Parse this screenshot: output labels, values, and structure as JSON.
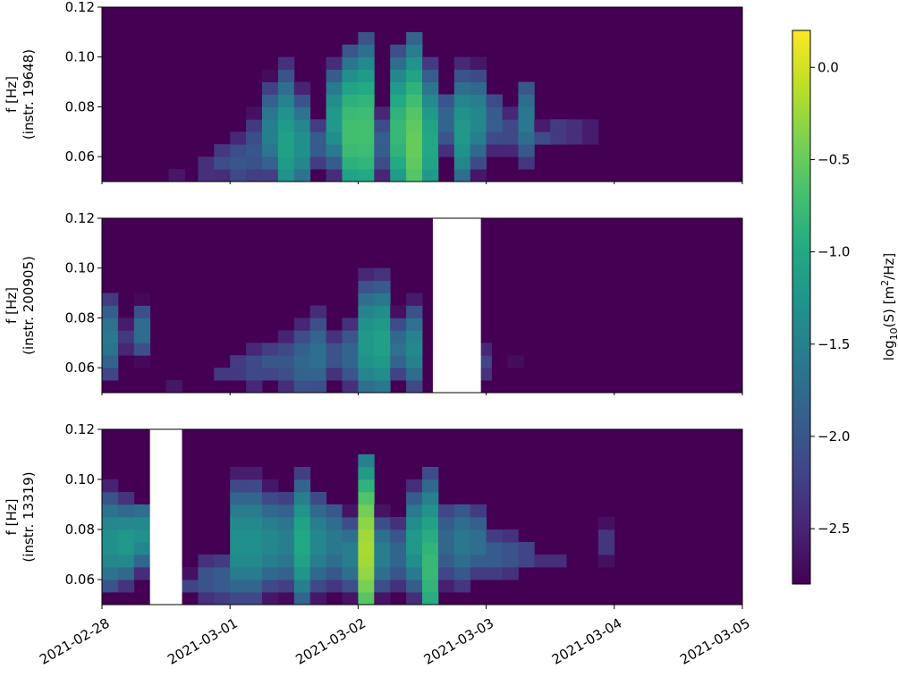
{
  "chart_data": {
    "type": "heatmap",
    "title": "",
    "xlabel": "",
    "x_ticks": [
      "2021-02-28",
      "2021-03-01",
      "2021-03-02",
      "2021-03-03",
      "2021-03-04",
      "2021-03-05"
    ],
    "xlim": [
      "2021-02-28",
      "2021-03-05"
    ],
    "ylim": [
      0.05,
      0.12
    ],
    "y_ticks": [
      "0.06",
      "0.08",
      "0.10",
      "0.12"
    ],
    "colormap": "viridis",
    "colorbar": {
      "label_prefix": "log",
      "label_sub": "10",
      "label_mid": "(S) [m",
      "label_sup": "2",
      "label_suffix": "/Hz]",
      "range": [
        -2.8,
        0.2
      ],
      "ticks": [
        "0.0",
        "−0.5",
        "−1.0",
        "−1.5",
        "−2.0",
        "−2.5"
      ],
      "tick_values": [
        0.0,
        -0.5,
        -1.0,
        -1.5,
        -2.0,
        -2.5
      ]
    },
    "freq_bins": [
      0.05,
      0.055,
      0.06,
      0.065,
      0.07,
      0.075,
      0.08,
      0.085,
      0.09,
      0.095,
      0.1,
      0.105,
      0.11,
      0.115,
      0.12
    ],
    "panels": [
      {
        "ylabel_line1": "f [Hz]",
        "ylabel_line2": "(instr. 19648)",
        "no_data_intervals": [],
        "bursts": [
          {
            "time": "2021-02-28T14:00",
            "width_h": 3,
            "fmin": 0.05,
            "fmax": 0.055,
            "fpeak": 0.052,
            "peak": -2.6
          },
          {
            "time": "2021-02-28T16:30",
            "width_h": 3,
            "fmin": 0.05,
            "fmax": 0.06,
            "fpeak": 0.055,
            "peak": -2.5
          },
          {
            "time": "2021-02-28T19:30",
            "width_h": 3,
            "fmin": 0.05,
            "fmax": 0.065,
            "fpeak": 0.055,
            "peak": -2.3
          },
          {
            "time": "2021-02-28T22:30",
            "width_h": 3,
            "fmin": 0.05,
            "fmax": 0.07,
            "fpeak": 0.058,
            "peak": -2.1
          },
          {
            "time": "2021-03-01T01:30",
            "width_h": 3,
            "fmin": 0.05,
            "fmax": 0.075,
            "fpeak": 0.058,
            "peak": -2.0
          },
          {
            "time": "2021-03-01T04:30",
            "width_h": 3,
            "fmin": 0.05,
            "fmax": 0.085,
            "fpeak": 0.062,
            "peak": -2.0
          },
          {
            "time": "2021-03-01T07:30",
            "width_h": 3,
            "fmin": 0.05,
            "fmax": 0.095,
            "fpeak": 0.07,
            "peak": -1.5
          },
          {
            "time": "2021-03-01T10:30",
            "width_h": 3,
            "fmin": 0.05,
            "fmax": 0.1,
            "fpeak": 0.065,
            "peak": -1.1
          },
          {
            "time": "2021-03-01T13:30",
            "width_h": 3,
            "fmin": 0.05,
            "fmax": 0.09,
            "fpeak": 0.065,
            "peak": -1.3
          },
          {
            "time": "2021-03-01T16:30",
            "width_h": 3,
            "fmin": 0.05,
            "fmax": 0.08,
            "fpeak": 0.065,
            "peak": -1.9
          },
          {
            "time": "2021-03-01T19:30",
            "width_h": 3,
            "fmin": 0.05,
            "fmax": 0.1,
            "fpeak": 0.075,
            "peak": -1.2
          },
          {
            "time": "2021-03-01T22:30",
            "width_h": 3,
            "fmin": 0.05,
            "fmax": 0.105,
            "fpeak": 0.07,
            "peak": -0.7
          },
          {
            "time": "2021-03-02T01:30",
            "width_h": 3,
            "fmin": 0.05,
            "fmax": 0.11,
            "fpeak": 0.07,
            "peak": -0.7
          },
          {
            "time": "2021-03-02T04:30",
            "width_h": 3,
            "fmin": 0.05,
            "fmax": 0.085,
            "fpeak": 0.065,
            "peak": -1.9
          },
          {
            "time": "2021-03-02T07:30",
            "width_h": 3,
            "fmin": 0.05,
            "fmax": 0.105,
            "fpeak": 0.07,
            "peak": -0.8
          },
          {
            "time": "2021-03-02T10:30",
            "width_h": 3,
            "fmin": 0.05,
            "fmax": 0.11,
            "fpeak": 0.065,
            "peak": -0.5
          },
          {
            "time": "2021-03-02T13:30",
            "width_h": 3,
            "fmin": 0.05,
            "fmax": 0.1,
            "fpeak": 0.065,
            "peak": -1.0
          },
          {
            "time": "2021-03-02T16:30",
            "width_h": 3,
            "fmin": 0.055,
            "fmax": 0.085,
            "fpeak": 0.075,
            "peak": -1.8
          },
          {
            "time": "2021-03-02T19:30",
            "width_h": 3,
            "fmin": 0.05,
            "fmax": 0.1,
            "fpeak": 0.07,
            "peak": -1.2
          },
          {
            "time": "2021-03-02T22:30",
            "width_h": 3,
            "fmin": 0.05,
            "fmax": 0.1,
            "fpeak": 0.075,
            "peak": -1.4
          },
          {
            "time": "2021-03-03T01:30",
            "width_h": 3,
            "fmin": 0.055,
            "fmax": 0.085,
            "fpeak": 0.075,
            "peak": -1.9
          },
          {
            "time": "2021-03-03T04:30",
            "width_h": 3,
            "fmin": 0.055,
            "fmax": 0.085,
            "fpeak": 0.07,
            "peak": -2.1
          },
          {
            "time": "2021-03-03T07:30",
            "width_h": 3,
            "fmin": 0.05,
            "fmax": 0.09,
            "fpeak": 0.075,
            "peak": -1.6
          },
          {
            "time": "2021-03-03T10:30",
            "width_h": 3,
            "fmin": 0.06,
            "fmax": 0.075,
            "fpeak": 0.068,
            "peak": -2.1
          },
          {
            "time": "2021-03-03T13:30",
            "width_h": 3,
            "fmin": 0.06,
            "fmax": 0.08,
            "fpeak": 0.07,
            "peak": -2.2
          },
          {
            "time": "2021-03-03T16:30",
            "width_h": 3,
            "fmin": 0.065,
            "fmax": 0.08,
            "fpeak": 0.07,
            "peak": -2.3
          },
          {
            "time": "2021-03-03T19:30",
            "width_h": 3,
            "fmin": 0.065,
            "fmax": 0.075,
            "fpeak": 0.07,
            "peak": -2.2
          }
        ]
      },
      {
        "ylabel_line1": "f [Hz]",
        "ylabel_line2": "(instr. 200905)",
        "no_data_intervals": [
          [
            "2021-03-02T14:00",
            "2021-03-02T23:00"
          ]
        ],
        "bursts": [
          {
            "time": "2021-02-28T01:30",
            "width_h": 3,
            "fmin": 0.055,
            "fmax": 0.095,
            "fpeak": 0.072,
            "peak": -1.6
          },
          {
            "time": "2021-02-28T04:30",
            "width_h": 3,
            "fmin": 0.06,
            "fmax": 0.085,
            "fpeak": 0.072,
            "peak": -2.3
          },
          {
            "time": "2021-02-28T07:30",
            "width_h": 3,
            "fmin": 0.06,
            "fmax": 0.09,
            "fpeak": 0.075,
            "peak": -1.7
          },
          {
            "time": "2021-02-28T13:30",
            "width_h": 3,
            "fmin": 0.05,
            "fmax": 0.055,
            "fpeak": 0.052,
            "peak": -2.6
          },
          {
            "time": "2021-02-28T19:30",
            "width_h": 3,
            "fmin": 0.05,
            "fmax": 0.06,
            "fpeak": 0.055,
            "peak": -2.4
          },
          {
            "time": "2021-02-28T22:30",
            "width_h": 3,
            "fmin": 0.05,
            "fmax": 0.065,
            "fpeak": 0.058,
            "peak": -2.3
          },
          {
            "time": "2021-03-01T01:30",
            "width_h": 3,
            "fmin": 0.05,
            "fmax": 0.07,
            "fpeak": 0.06,
            "peak": -2.2
          },
          {
            "time": "2021-03-01T04:30",
            "width_h": 3,
            "fmin": 0.05,
            "fmax": 0.075,
            "fpeak": 0.06,
            "peak": -2.1
          },
          {
            "time": "2021-03-01T07:30",
            "width_h": 3,
            "fmin": 0.05,
            "fmax": 0.075,
            "fpeak": 0.062,
            "peak": -2.0
          },
          {
            "time": "2021-03-01T10:30",
            "width_h": 3,
            "fmin": 0.05,
            "fmax": 0.08,
            "fpeak": 0.062,
            "peak": -2.0
          },
          {
            "time": "2021-03-01T13:30",
            "width_h": 3,
            "fmin": 0.05,
            "fmax": 0.085,
            "fpeak": 0.062,
            "peak": -1.8
          },
          {
            "time": "2021-03-01T16:30",
            "width_h": 3,
            "fmin": 0.05,
            "fmax": 0.09,
            "fpeak": 0.065,
            "peak": -1.7
          },
          {
            "time": "2021-03-01T19:30",
            "width_h": 3,
            "fmin": 0.05,
            "fmax": 0.08,
            "fpeak": 0.065,
            "peak": -2.0
          },
          {
            "time": "2021-03-01T22:30",
            "width_h": 3,
            "fmin": 0.05,
            "fmax": 0.085,
            "fpeak": 0.065,
            "peak": -1.8
          },
          {
            "time": "2021-03-02T01:30",
            "width_h": 3,
            "fmin": 0.05,
            "fmax": 0.1,
            "fpeak": 0.07,
            "peak": -1.2
          },
          {
            "time": "2021-03-02T04:30",
            "width_h": 3,
            "fmin": 0.05,
            "fmax": 0.1,
            "fpeak": 0.07,
            "peak": -1.1
          },
          {
            "time": "2021-03-02T07:30",
            "width_h": 3,
            "fmin": 0.05,
            "fmax": 0.085,
            "fpeak": 0.068,
            "peak": -1.7
          },
          {
            "time": "2021-03-02T10:30",
            "width_h": 3,
            "fmin": 0.05,
            "fmax": 0.09,
            "fpeak": 0.068,
            "peak": -1.4
          },
          {
            "time": "2021-03-02T23:30",
            "width_h": 3,
            "fmin": 0.05,
            "fmax": 0.075,
            "fpeak": 0.062,
            "peak": -2.2
          },
          {
            "time": "2021-03-03T02:30",
            "width_h": 3,
            "fmin": 0.06,
            "fmax": 0.07,
            "fpeak": 0.065,
            "peak": -2.6
          },
          {
            "time": "2021-03-03T05:30",
            "width_h": 3,
            "fmin": 0.06,
            "fmax": 0.065,
            "fpeak": 0.062,
            "peak": -2.7
          }
        ]
      },
      {
        "ylabel_line1": "f [Hz]",
        "ylabel_line2": "(instr. 13319)",
        "no_data_intervals": [
          [
            "2021-02-28T09:00",
            "2021-02-28T15:00"
          ]
        ],
        "bursts": [
          {
            "time": "2021-02-28T01:30",
            "width_h": 3,
            "fmin": 0.055,
            "fmax": 0.1,
            "fpeak": 0.075,
            "peak": -1.3
          },
          {
            "time": "2021-02-28T04:30",
            "width_h": 3,
            "fmin": 0.055,
            "fmax": 0.095,
            "fpeak": 0.075,
            "peak": -1.2
          },
          {
            "time": "2021-02-28T07:30",
            "width_h": 3,
            "fmin": 0.06,
            "fmax": 0.09,
            "fpeak": 0.078,
            "peak": -1.3
          },
          {
            "time": "2021-02-28T16:30",
            "width_h": 3,
            "fmin": 0.05,
            "fmax": 0.065,
            "fpeak": 0.058,
            "peak": -2.2
          },
          {
            "time": "2021-02-28T19:30",
            "width_h": 3,
            "fmin": 0.05,
            "fmax": 0.075,
            "fpeak": 0.06,
            "peak": -2.0
          },
          {
            "time": "2021-02-28T22:30",
            "width_h": 3,
            "fmin": 0.05,
            "fmax": 0.075,
            "fpeak": 0.06,
            "peak": -1.9
          },
          {
            "time": "2021-03-01T01:30",
            "width_h": 3,
            "fmin": 0.05,
            "fmax": 0.105,
            "fpeak": 0.075,
            "peak": -1.3
          },
          {
            "time": "2021-03-01T04:30",
            "width_h": 3,
            "fmin": 0.05,
            "fmax": 0.105,
            "fpeak": 0.075,
            "peak": -1.3
          },
          {
            "time": "2021-03-01T07:30",
            "width_h": 3,
            "fmin": 0.05,
            "fmax": 0.1,
            "fpeak": 0.075,
            "peak": -1.4
          },
          {
            "time": "2021-03-01T10:30",
            "width_h": 3,
            "fmin": 0.05,
            "fmax": 0.095,
            "fpeak": 0.075,
            "peak": -1.5
          },
          {
            "time": "2021-03-01T13:30",
            "width_h": 3,
            "fmin": 0.05,
            "fmax": 0.105,
            "fpeak": 0.075,
            "peak": -1.0
          },
          {
            "time": "2021-03-01T16:30",
            "width_h": 3,
            "fmin": 0.05,
            "fmax": 0.095,
            "fpeak": 0.075,
            "peak": -1.4
          },
          {
            "time": "2021-03-01T19:30",
            "width_h": 3,
            "fmin": 0.05,
            "fmax": 0.09,
            "fpeak": 0.075,
            "peak": -1.6
          },
          {
            "time": "2021-03-01T22:30",
            "width_h": 3,
            "fmin": 0.05,
            "fmax": 0.09,
            "fpeak": 0.07,
            "peak": -1.5
          },
          {
            "time": "2021-03-02T01:30",
            "width_h": 3,
            "fmin": 0.05,
            "fmax": 0.11,
            "fpeak": 0.072,
            "peak": -0.2
          },
          {
            "time": "2021-03-02T04:30",
            "width_h": 3,
            "fmin": 0.05,
            "fmax": 0.09,
            "fpeak": 0.07,
            "peak": -1.5
          },
          {
            "time": "2021-03-02T07:30",
            "width_h": 3,
            "fmin": 0.05,
            "fmax": 0.085,
            "fpeak": 0.07,
            "peak": -1.8
          },
          {
            "time": "2021-03-02T10:30",
            "width_h": 3,
            "fmin": 0.05,
            "fmax": 0.1,
            "fpeak": 0.075,
            "peak": -1.2
          },
          {
            "time": "2021-03-02T13:30",
            "width_h": 3,
            "fmin": 0.05,
            "fmax": 0.105,
            "fpeak": 0.065,
            "peak": -0.8
          },
          {
            "time": "2021-03-02T16:30",
            "width_h": 3,
            "fmin": 0.05,
            "fmax": 0.09,
            "fpeak": 0.075,
            "peak": -1.8
          },
          {
            "time": "2021-03-02T19:30",
            "width_h": 3,
            "fmin": 0.05,
            "fmax": 0.09,
            "fpeak": 0.075,
            "peak": -1.6
          },
          {
            "time": "2021-03-02T22:30",
            "width_h": 3,
            "fmin": 0.055,
            "fmax": 0.09,
            "fpeak": 0.075,
            "peak": -1.7
          },
          {
            "time": "2021-03-03T01:30",
            "width_h": 3,
            "fmin": 0.055,
            "fmax": 0.085,
            "fpeak": 0.07,
            "peak": -1.9
          },
          {
            "time": "2021-03-03T04:30",
            "width_h": 3,
            "fmin": 0.055,
            "fmax": 0.08,
            "fpeak": 0.07,
            "peak": -2.0
          },
          {
            "time": "2021-03-03T07:30",
            "width_h": 3,
            "fmin": 0.06,
            "fmax": 0.08,
            "fpeak": 0.07,
            "peak": -2.1
          },
          {
            "time": "2021-03-03T10:30",
            "width_h": 3,
            "fmin": 0.06,
            "fmax": 0.075,
            "fpeak": 0.068,
            "peak": -2.4
          },
          {
            "time": "2021-03-03T13:30",
            "width_h": 3,
            "fmin": 0.06,
            "fmax": 0.075,
            "fpeak": 0.068,
            "peak": -2.4
          },
          {
            "time": "2021-03-03T19:30",
            "width_h": 3,
            "fmin": 0.06,
            "fmax": 0.07,
            "fpeak": 0.065,
            "peak": -2.6
          },
          {
            "time": "2021-03-03T22:30",
            "width_h": 3,
            "fmin": 0.06,
            "fmax": 0.085,
            "fpeak": 0.075,
            "peak": -2.3
          },
          {
            "time": "2021-03-04T01:30",
            "width_h": 3,
            "fmin": 0.065,
            "fmax": 0.075,
            "fpeak": 0.07,
            "peak": -2.6
          }
        ]
      }
    ]
  }
}
